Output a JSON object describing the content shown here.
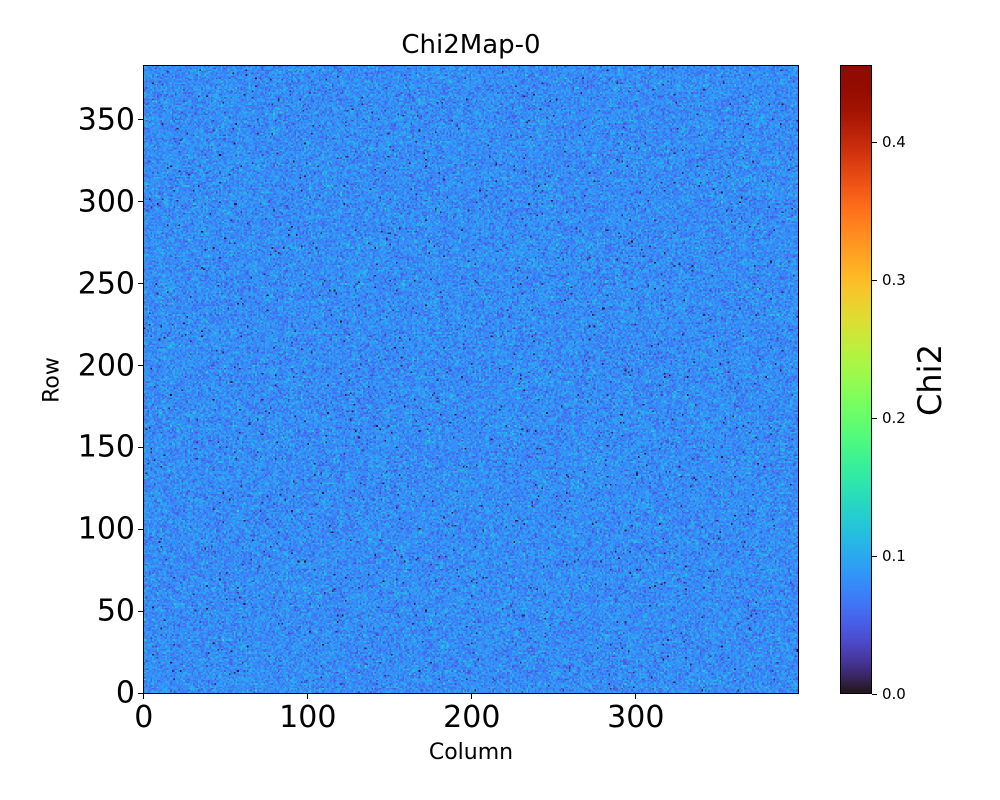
{
  "chart_data": {
    "type": "heatmap",
    "title": "Chi2Map-0",
    "xlabel": "Column",
    "ylabel": "Row",
    "colorbar_label": "Chi2",
    "colormap": "turbo",
    "n_columns": 400,
    "n_rows": 384,
    "xlim": [
      -0.5,
      399.5
    ],
    "ylim": [
      -0.5,
      383.5
    ],
    "vmin": 0.0,
    "vmax": 0.456,
    "typical_value": 0.08,
    "x_ticks": [
      {
        "v": 0,
        "label": "0"
      },
      {
        "v": 100,
        "label": "100"
      },
      {
        "v": 200,
        "label": "200"
      },
      {
        "v": 300,
        "label": "300"
      }
    ],
    "y_ticks": [
      {
        "v": 0,
        "label": "0"
      },
      {
        "v": 50,
        "label": "50"
      },
      {
        "v": 100,
        "label": "100"
      },
      {
        "v": 150,
        "label": "150"
      },
      {
        "v": 200,
        "label": "200"
      },
      {
        "v": 250,
        "label": "250"
      },
      {
        "v": 300,
        "label": "300"
      },
      {
        "v": 350,
        "label": "350"
      }
    ],
    "colorbar_ticks": [
      {
        "v": 0.0,
        "label": "0.0"
      },
      {
        "v": 0.1,
        "label": "0.1"
      },
      {
        "v": 0.2,
        "label": "0.2"
      },
      {
        "v": 0.3,
        "label": "0.3"
      },
      {
        "v": 0.4,
        "label": "0.4"
      }
    ]
  }
}
